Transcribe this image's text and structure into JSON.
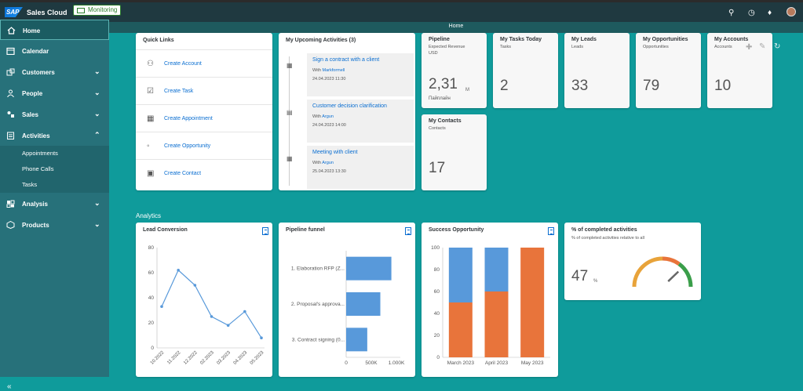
{
  "header": {
    "logo_text": "SAP",
    "app_title": "Sales Cloud",
    "monitor_label": "Monitoring",
    "page_title": "Home"
  },
  "sidebar": {
    "items": [
      {
        "label": "Home"
      },
      {
        "label": "Calendar"
      },
      {
        "label": "Customers"
      },
      {
        "label": "People"
      },
      {
        "label": "Sales"
      },
      {
        "label": "Activities"
      },
      {
        "label": "Analysis"
      },
      {
        "label": "Products"
      }
    ],
    "sub_items": [
      {
        "label": "Appointments"
      },
      {
        "label": "Phone Calls"
      },
      {
        "label": "Tasks"
      }
    ]
  },
  "quick_links": {
    "title": "Quick Links",
    "items": [
      {
        "label": "Create Account"
      },
      {
        "label": "Create Task"
      },
      {
        "label": "Create Appointment"
      },
      {
        "label": "Create Opportunity"
      },
      {
        "label": "Create Contact"
      }
    ]
  },
  "activities": {
    "title": "My Upcoming Activities (3)",
    "with_label": "With",
    "items": [
      {
        "title": "Sign a contract with a client",
        "with": "Markformell",
        "date": "24.04.2023 11:30"
      },
      {
        "title": "Customer decision clarification",
        "with": "Argun",
        "date": "24.04.2023 14:00"
      },
      {
        "title": "Meeting with client",
        "with": "Argun",
        "date": "25.04.2023 13:30"
      }
    ]
  },
  "tiles": {
    "pipeline": {
      "title": "Pipeline",
      "sub": "Expected Revenue",
      "sub2": "USD",
      "value": "2,31",
      "unit": "M",
      "foot": "Пайплайн"
    },
    "tasks": {
      "title": "My Tasks Today",
      "sub": "Tasks",
      "value": "2"
    },
    "leads": {
      "title": "My Leads",
      "sub": "Leads",
      "value": "33"
    },
    "opportunities": {
      "title": "My Opportunities",
      "sub": "Opportunities",
      "value": "79"
    },
    "accounts": {
      "title": "My Accounts",
      "sub": "Accounts",
      "value": "10"
    },
    "contacts": {
      "title": "My Contacts",
      "sub": "Contacts",
      "value": "17"
    }
  },
  "analytics": {
    "section_label": "Analytics",
    "completed": {
      "title": "% of completed activities",
      "sub": "% of completed activities relative to all",
      "value": "47",
      "unit": "%",
      "percent": 47
    }
  },
  "chart_data": [
    {
      "type": "line",
      "title": "Lead Conversion",
      "categories": [
        "10.2022",
        "11.2022",
        "12.2022",
        "02.2023",
        "03.2023",
        "04.2023",
        "05.2023"
      ],
      "values": [
        33,
        62,
        50,
        25,
        18,
        29,
        8
      ],
      "ylim": [
        0,
        80
      ],
      "yticks": [
        0,
        20,
        40,
        60,
        80
      ],
      "color": "#5899da"
    },
    {
      "type": "bar",
      "orientation": "horizontal",
      "title": "Pipeline funnel",
      "categories": [
        "1. Elaboration RFP (Z...",
        "2. Proposal's approva...",
        "3. Contract signing (0..."
      ],
      "values": [
        900000,
        680000,
        420000
      ],
      "xlim": [
        0,
        1000000
      ],
      "xticks": [
        "0",
        "500K",
        "1.000K"
      ],
      "color": "#5899da"
    },
    {
      "type": "bar",
      "stacked": true,
      "title": "Success Opportunity",
      "categories": [
        "March 2023",
        "April 2023",
        "May 2023"
      ],
      "series": [
        {
          "values": [
            50,
            60,
            100
          ],
          "color": "#e8743b"
        },
        {
          "values": [
            50,
            40,
            0
          ],
          "color": "#5899da"
        }
      ],
      "ylim": [
        0,
        100
      ],
      "yticks": [
        0,
        20,
        40,
        60,
        80,
        100
      ]
    }
  ]
}
